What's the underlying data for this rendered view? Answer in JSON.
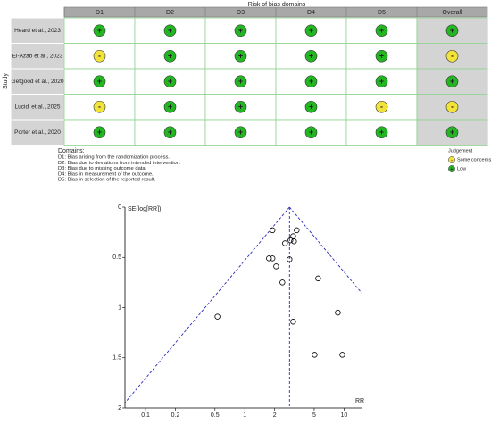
{
  "rob": {
    "title": "Risk of bias domains",
    "study_label": "Study",
    "columns": [
      "D1",
      "D2",
      "D3",
      "D4",
      "D5",
      "Overall"
    ],
    "rows": [
      {
        "study": "Heard et al., 2023",
        "judgements": [
          "+",
          "+",
          "+",
          "+",
          "+",
          "+"
        ]
      },
      {
        "study": "El-Azab et al., 2023",
        "judgements": [
          "-",
          "+",
          "+",
          "+",
          "+",
          "-"
        ]
      },
      {
        "study": "Getgood et al., 2020",
        "judgements": [
          "+",
          "+",
          "+",
          "+",
          "+",
          "+"
        ]
      },
      {
        "study": "Lucidi et al., 2025",
        "judgements": [
          "-",
          "+",
          "+",
          "+",
          "-",
          "-"
        ]
      },
      {
        "study": "Porter et al., 2020",
        "judgements": [
          "+",
          "+",
          "+",
          "+",
          "+",
          "+"
        ]
      }
    ],
    "domains_heading": "Domains:",
    "domains": [
      "D1: Bias arising from the randomization process.",
      "D2: Bias due to deviations from intended intervention.",
      "D3: Bias due to missing outcome data.",
      "D4: Bias in measurement of the outcome.",
      "D5: Bias in selection of the reported result."
    ],
    "legend": {
      "title": "Judgement",
      "items": [
        {
          "symbol": "-",
          "label": "Some concerns",
          "color": "#f2e33a"
        },
        {
          "symbol": "+",
          "label": "Low",
          "color": "#22b722"
        }
      ]
    }
  },
  "chart_data": {
    "type": "scatter",
    "x_label": "RR",
    "y_label": "SE(log[RR])",
    "x": [
      1.9,
      3.33,
      3.07,
      2.88,
      3.13,
      2.54,
      1.75,
      1.9,
      2.82,
      2.07,
      2.39,
      5.48,
      0.53,
      3.07,
      8.65,
      5.05,
      9.6
    ],
    "y": [
      0.23,
      0.23,
      0.29,
      0.33,
      0.34,
      0.36,
      0.51,
      0.51,
      0.52,
      0.59,
      0.75,
      0.71,
      1.09,
      1.14,
      1.05,
      1.47,
      1.47
    ],
    "xlim": [
      0.062,
      15
    ],
    "xticks": [
      0.1,
      0.2,
      0.5,
      1,
      2,
      5,
      10
    ],
    "log_x": true,
    "ylim": [
      0,
      2
    ],
    "yticks": [
      0,
      0.5,
      1,
      1.5,
      2
    ],
    "y_inverted": true,
    "summary": 2.82,
    "funnel_color": "#2a2ab8",
    "point_color": "#000000"
  }
}
